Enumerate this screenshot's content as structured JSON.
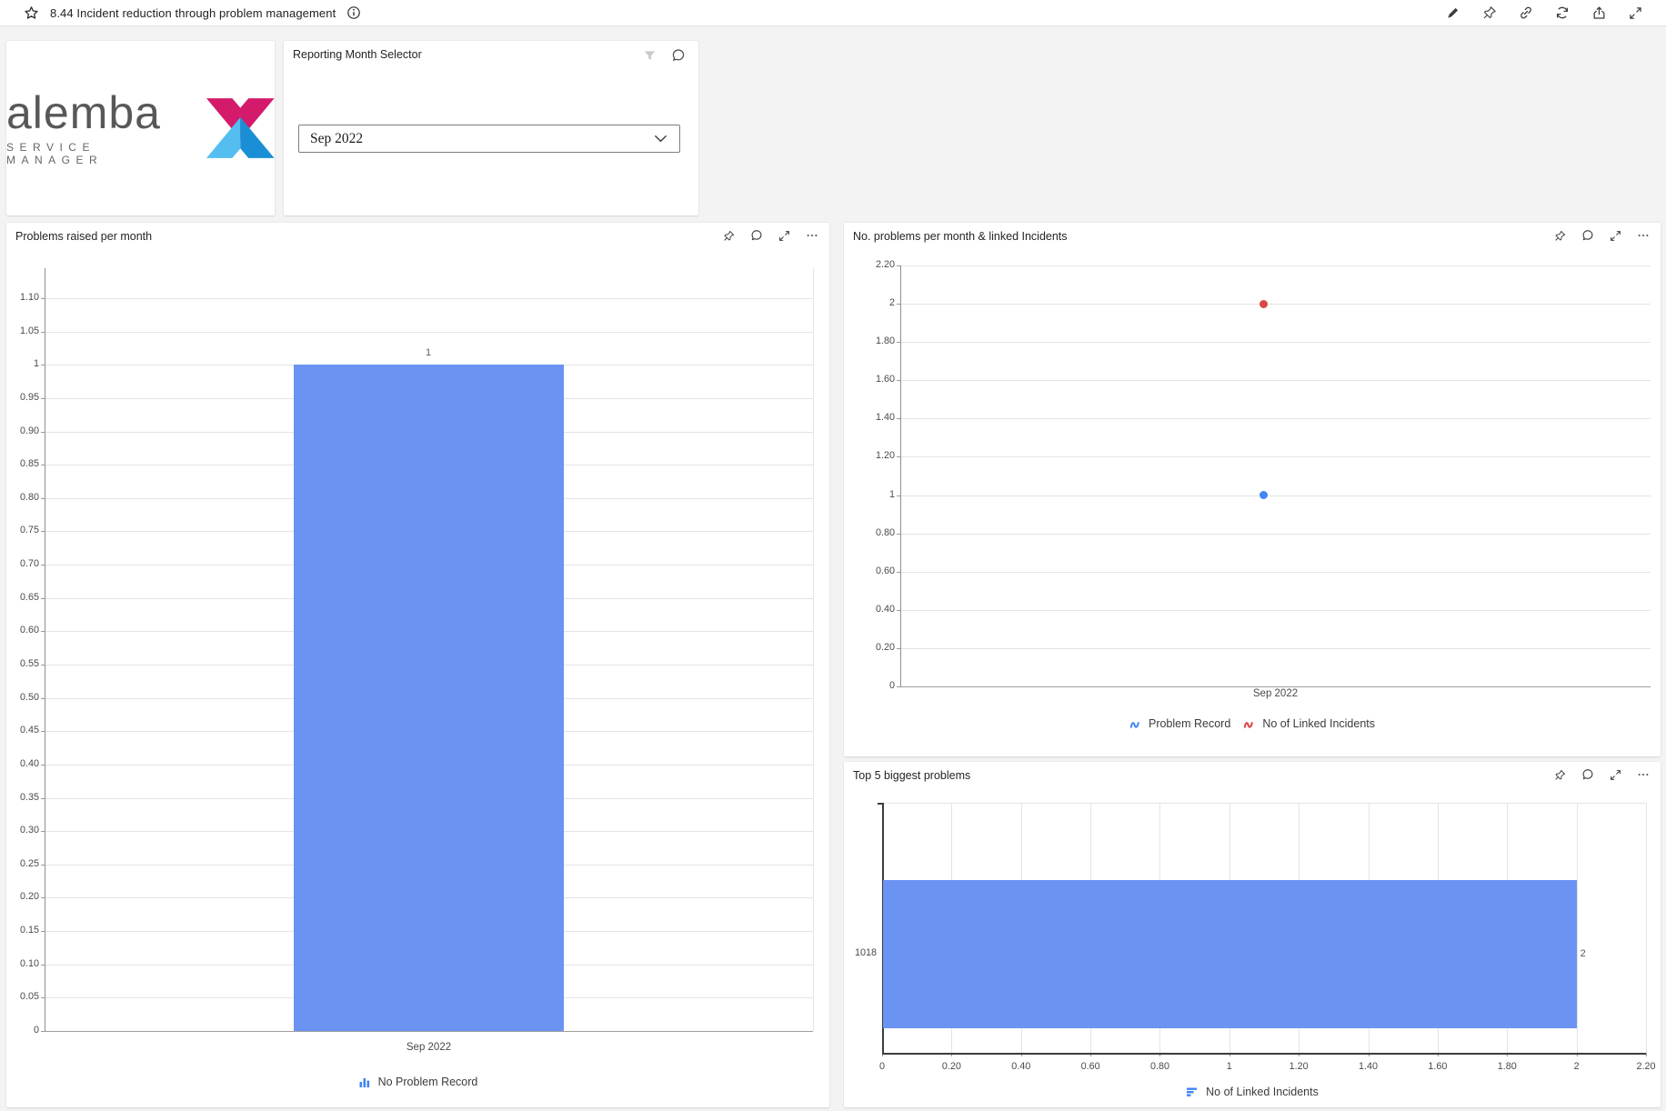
{
  "titlebar": {
    "title": "8.44 Incident reduction through problem management"
  },
  "logo_card": {
    "brand": "alemba",
    "subtitle": "SERVICE MANAGER"
  },
  "selector_card": {
    "title": "Reporting Month Selector",
    "dropdown_value": "Sep 2022"
  },
  "chart_data": [
    {
      "type": "bar",
      "title": "Problems raised per month",
      "categories": [
        "Sep 2022"
      ],
      "series": [
        {
          "name": "No Problem Record",
          "color": "#6B93F1",
          "values": [
            1
          ]
        }
      ],
      "data_labels": [
        "1"
      ],
      "ylim": [
        0,
        1.1
      ],
      "ystep": 0.05,
      "grid": "horizontal",
      "legend_position": "bottom"
    },
    {
      "type": "scatter",
      "title": "No. problems per month & linked Incidents",
      "x": [
        "Sep 2022"
      ],
      "series": [
        {
          "name": "Problem Record",
          "color": "#4285F4",
          "values": [
            1
          ]
        },
        {
          "name": "No of Linked Incidents",
          "color": "#DB4743",
          "values": [
            2
          ]
        }
      ],
      "ylim": [
        0,
        2.2
      ],
      "ystep": 0.2,
      "grid": "horizontal",
      "legend_position": "bottom"
    },
    {
      "type": "bar-horizontal",
      "title": "Top 5 biggest problems",
      "categories": [
        "1018"
      ],
      "series": [
        {
          "name": "No of Linked Incidents",
          "color": "#6B93F1",
          "values": [
            2
          ]
        }
      ],
      "data_labels": [
        "2"
      ],
      "xlim": [
        0,
        2.2
      ],
      "xstep": 0.2,
      "grid": "vertical",
      "legend_position": "bottom"
    }
  ],
  "colors": {
    "background": "#F3F3F4",
    "card": "#FFFFFF",
    "bar_blue": "#6B93F1",
    "series_blue": "#4285F4",
    "series_red": "#DB4743",
    "brand_pink": "#D41A6B",
    "brand_blue_light": "#55BEF0",
    "brand_blue_dark": "#1B8FD6",
    "axis_text": "#4A4A4A"
  }
}
